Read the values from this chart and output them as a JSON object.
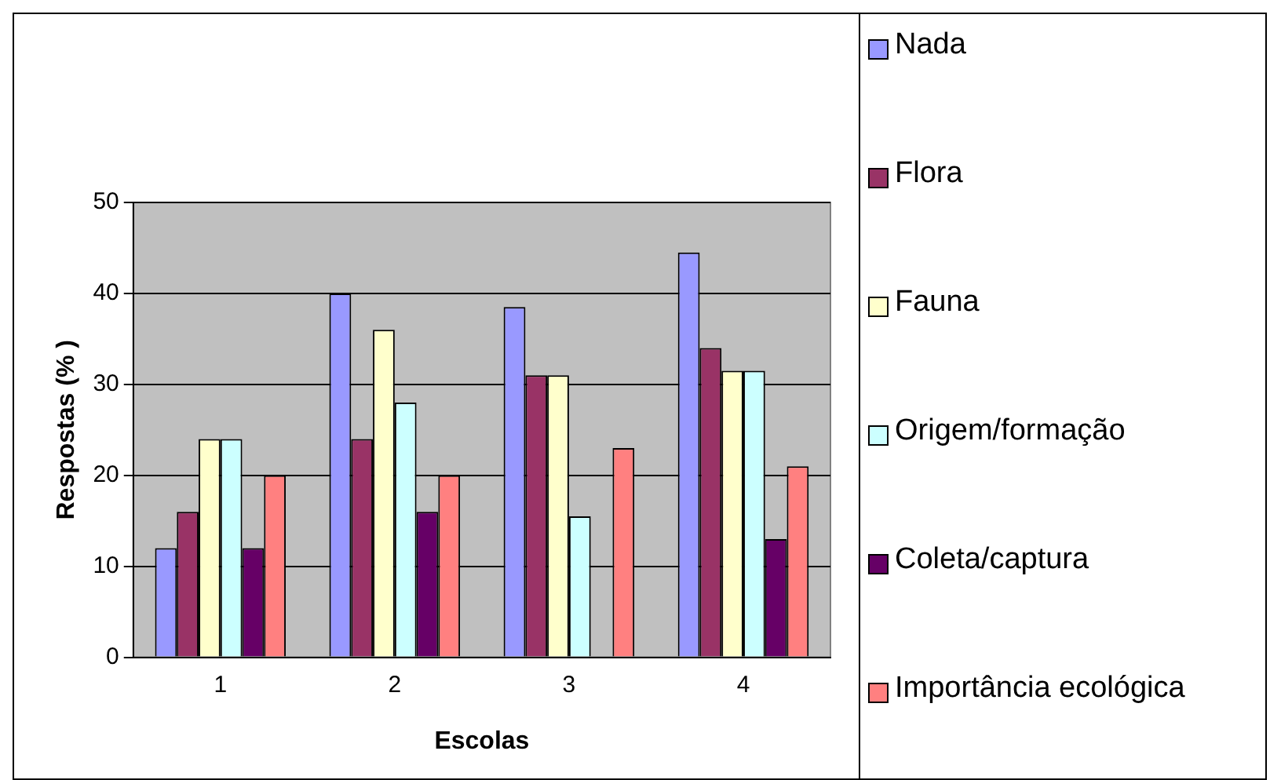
{
  "chart_data": {
    "type": "bar",
    "xlabel": "Escolas",
    "ylabel": "Respostas (% )",
    "categories": [
      "1",
      "2",
      "3",
      "4"
    ],
    "series": [
      {
        "name": "Nada",
        "color": "#9999ff",
        "values": [
          12,
          40,
          38.5,
          44.5
        ]
      },
      {
        "name": "Flora",
        "color": "#993366",
        "values": [
          16,
          24,
          31,
          34
        ]
      },
      {
        "name": "Fauna",
        "color": "#ffffcc",
        "values": [
          24,
          36,
          31,
          31.5
        ]
      },
      {
        "name": "Origem/formação",
        "color": "#ccffff",
        "values": [
          24,
          28,
          15.5,
          31.5
        ]
      },
      {
        "name": "Coleta/captura",
        "color": "#660066",
        "values": [
          12,
          16,
          0,
          13
        ]
      },
      {
        "name": "Importância ecológica",
        "color": "#ff8080",
        "values": [
          20,
          20,
          23,
          21
        ]
      }
    ],
    "ylim": [
      0,
      50
    ],
    "yticks": [
      0,
      10,
      20,
      30,
      40,
      50
    ],
    "grid": "y",
    "legend": "right"
  }
}
